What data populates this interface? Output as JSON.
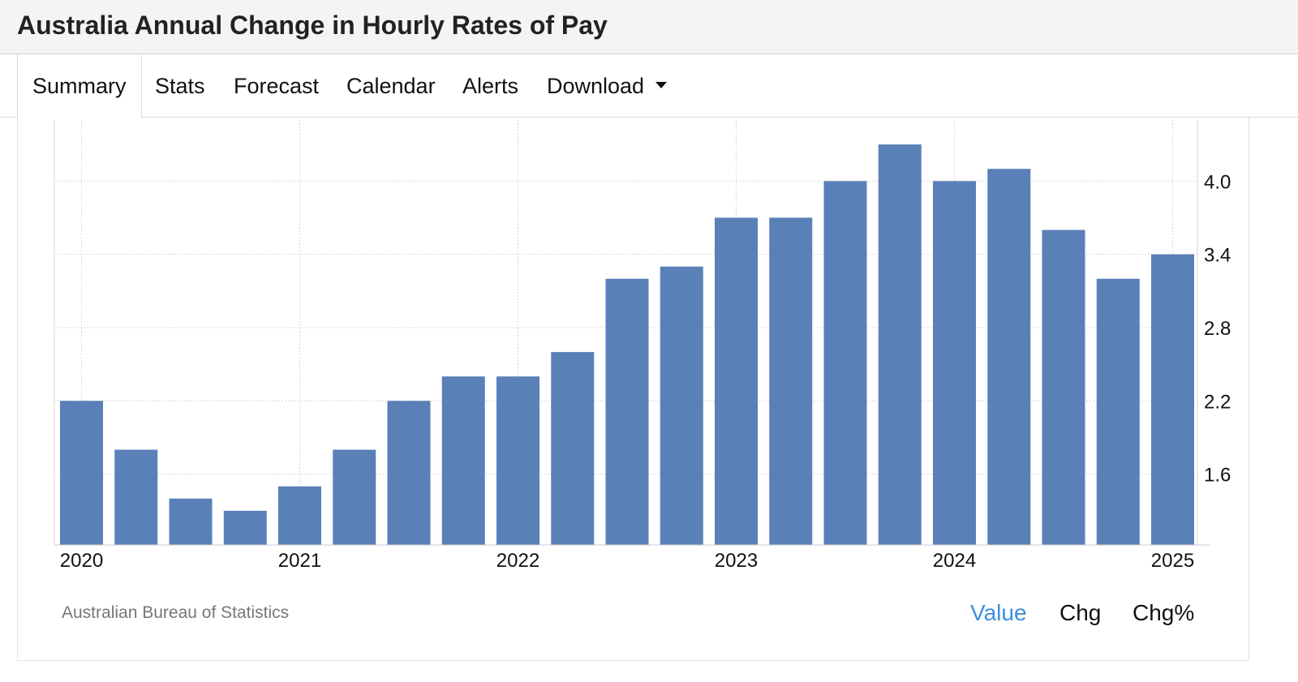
{
  "header": {
    "title": "Australia Annual Change in Hourly Rates of Pay"
  },
  "tabs": [
    {
      "label": "Summary",
      "active": true
    },
    {
      "label": "Stats"
    },
    {
      "label": "Forecast"
    },
    {
      "label": "Calendar"
    },
    {
      "label": "Alerts"
    },
    {
      "label": "Download",
      "dropdown": true
    }
  ],
  "source": "Australian Bureau of Statistics",
  "toggles": [
    {
      "label": "Value",
      "active": true
    },
    {
      "label": "Chg"
    },
    {
      "label": "Chg%"
    }
  ],
  "colors": {
    "bar": "#5a80b8",
    "grid": "#d8d8d8",
    "active_toggle": "#3b8fe0"
  },
  "chart_data": {
    "type": "bar",
    "title": "",
    "xlabel": "",
    "ylabel": "",
    "categories": [
      "2020Q1",
      "2020Q2",
      "2020Q3",
      "2020Q4",
      "2021Q1",
      "2021Q2",
      "2021Q3",
      "2021Q4",
      "2022Q1",
      "2022Q2",
      "2022Q3",
      "2022Q4",
      "2023Q1",
      "2023Q2",
      "2023Q3",
      "2023Q4",
      "2024Q1",
      "2024Q2",
      "2024Q3",
      "2024Q4",
      "2025Q1"
    ],
    "values": [
      2.2,
      1.8,
      1.4,
      1.3,
      1.5,
      1.8,
      2.2,
      2.4,
      2.4,
      2.6,
      3.2,
      3.3,
      3.7,
      3.7,
      4.0,
      4.3,
      4.0,
      4.1,
      3.6,
      3.2,
      3.4
    ],
    "x_tick_labels": [
      "2020",
      "2021",
      "2022",
      "2023",
      "2024",
      "2025"
    ],
    "y_ticks": [
      1.6,
      2.2,
      2.8,
      3.4,
      4.0
    ],
    "y_tick_labels": [
      "1.6",
      "2.2",
      "2.8",
      "3.4",
      "4.0"
    ],
    "ylim": [
      1.02,
      4.5
    ],
    "y_axis_side": "right",
    "grid": true,
    "legend": "none"
  }
}
